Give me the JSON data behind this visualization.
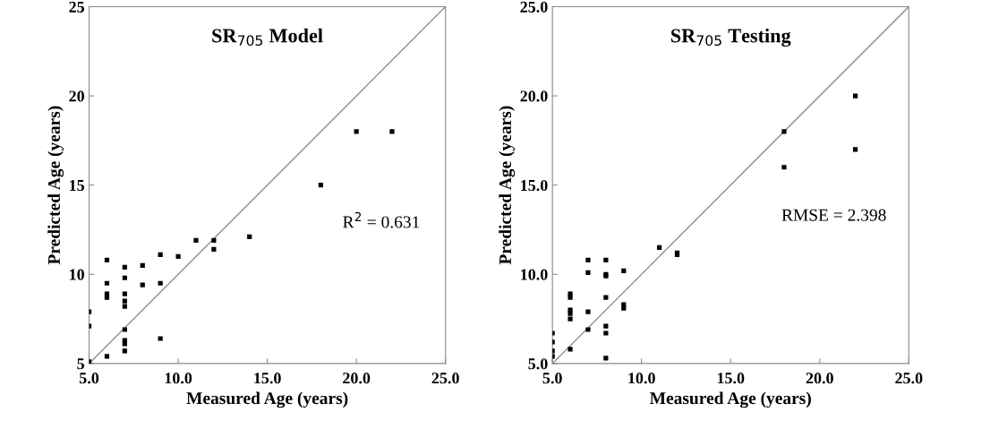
{
  "chart_data": [
    {
      "type": "scatter",
      "title": "SR$_{705}$ Model",
      "xlabel": "Measured Age (years)",
      "ylabel": "Predicted Age (years)",
      "marker": "square",
      "grid": false,
      "legend": false,
      "annotations": [
        "R$^{2}$ = 0.631"
      ],
      "xlim": [
        5,
        25
      ],
      "xticks": [
        {
          "value": 5,
          "label": "5.0"
        },
        {
          "value": 10,
          "label": "10.0"
        },
        {
          "value": 15,
          "label": "15.0"
        },
        {
          "value": 20,
          "label": "20.0"
        },
        {
          "value": 25,
          "label": "25.0"
        }
      ],
      "ylim": [
        5,
        25
      ],
      "yticks": [
        5,
        10,
        15,
        20,
        25
      ],
      "series": [
        {
          "color": "#000000",
          "x": [
            5,
            5,
            5,
            6,
            6,
            6,
            6,
            6,
            7,
            7,
            7,
            7,
            7,
            7,
            7,
            7,
            7,
            8,
            8,
            9,
            9,
            9,
            10,
            11,
            12,
            12,
            14,
            18,
            20,
            22
          ],
          "values": [
            5.1,
            7.1,
            7.9,
            5.4,
            8.7,
            8.9,
            9.5,
            10.8,
            5.7,
            6.1,
            6.3,
            6.9,
            8.2,
            8.5,
            8.9,
            9.8,
            10.4,
            9.4,
            10.5,
            6.4,
            9.5,
            11.1,
            11.0,
            11.9,
            11.4,
            11.9,
            12.1,
            15,
            18,
            18
          ]
        },
        {
          "type": "line",
          "color": "#808080",
          "marker": "none",
          "x": [
            5,
            25
          ],
          "values": [
            5,
            25
          ]
        }
      ]
    },
    {
      "type": "scatter",
      "title": "SR$_{705}$ Testing",
      "xlabel": "Measured Age (years)",
      "ylabel": "Predicted Age (years)",
      "marker": "square",
      "grid": false,
      "legend": false,
      "annotations": [
        "RMSE = 2.398"
      ],
      "xlim": [
        5,
        25
      ],
      "xticks": [
        {
          "value": 5,
          "label": "5.0"
        },
        {
          "value": 10,
          "label": "10.0"
        },
        {
          "value": 15,
          "label": "15.0"
        },
        {
          "value": 20,
          "label": "20.0"
        },
        {
          "value": 25,
          "label": "25.0"
        }
      ],
      "ylim": [
        5,
        25
      ],
      "yticks": [
        {
          "value": 5,
          "label": "5.0"
        },
        {
          "value": 10,
          "label": "10.0"
        },
        {
          "value": 15,
          "label": "15.0"
        },
        {
          "value": 20,
          "label": "20.0"
        },
        {
          "value": 25,
          "label": "25.0"
        }
      ],
      "series": [
        {
          "color": "#000000",
          "x": [
            5,
            5,
            5,
            5,
            6,
            6,
            6,
            6,
            6,
            6,
            7,
            7,
            7,
            7,
            8,
            8,
            8,
            8,
            8,
            8,
            8,
            9,
            9,
            9,
            11,
            12,
            12,
            18,
            18,
            22,
            22
          ],
          "values": [
            6.7,
            6.2,
            5.7,
            5.4,
            5.8,
            8.9,
            8.7,
            8.0,
            7.8,
            7.5,
            10.8,
            10.1,
            7.9,
            6.9,
            10.8,
            10.0,
            9.9,
            8.7,
            7.1,
            6.7,
            5.3,
            10.2,
            8.3,
            8.1,
            11.5,
            11.2,
            11.1,
            18,
            16,
            20,
            17
          ]
        },
        {
          "type": "line",
          "color": "#808080",
          "marker": "none",
          "x": [
            5,
            25
          ],
          "values": [
            5,
            25
          ]
        }
      ]
    }
  ]
}
